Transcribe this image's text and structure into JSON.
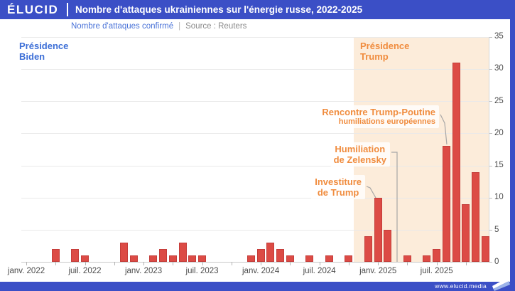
{
  "header": {
    "logo": "ÉLUCID",
    "title": "Nombre d'attaques ukrainiennes sur l'énergie russe, 2022-2025"
  },
  "subtitle": {
    "metric": "Nombre d'attaques confirmé",
    "separator": "|",
    "source": "Source : Reuters"
  },
  "presidency": {
    "biden": {
      "line1": "Présidence",
      "line2": "Biden"
    },
    "trump": {
      "line1": "Présidence",
      "line2": "Trump"
    }
  },
  "annotations": {
    "rencontre": {
      "title": "Rencontre Trump-Poutine",
      "subtitle": "humiliations européennes"
    },
    "humiliation": {
      "line1": "Humiliation",
      "line2": "de Zelensky"
    },
    "investiture": {
      "line1": "Investiture",
      "line2": "de Trump"
    }
  },
  "footer": {
    "url": "www.elucid.media"
  },
  "colors": {
    "brand_blue": "#3b4fc6",
    "bar_red": "#dc4b45",
    "orange_accent": "#f08c3e",
    "biden_blue": "#3d6fd7",
    "shade_peach": "#fcecda"
  },
  "chart_data": {
    "type": "bar",
    "title": "Nombre d'attaques ukrainiennes sur l'énergie russe, 2022-2025",
    "ylabel": "Nombre d'attaques confirmé",
    "source": "Source : Reuters",
    "ylim": [
      0,
      35
    ],
    "y_ticks": [
      0,
      5,
      10,
      15,
      20,
      25,
      30,
      35
    ],
    "grid": true,
    "legend_position": "none",
    "start_month": "janv. 2022",
    "values_by_year": {
      "2022": [
        0,
        0,
        0,
        2,
        0,
        2,
        1,
        0,
        0,
        0,
        3,
        1
      ],
      "2023": [
        0,
        1,
        2,
        1,
        3,
        1,
        1,
        0,
        0,
        0,
        0,
        1
      ],
      "2024": [
        2,
        3,
        2,
        1,
        0,
        1,
        0,
        1,
        0,
        1,
        0,
        4
      ],
      "2025": [
        10,
        5,
        0,
        1,
        0,
        1,
        2,
        18,
        31,
        9,
        14,
        4
      ]
    },
    "values": [
      0,
      0,
      0,
      2,
      0,
      2,
      1,
      0,
      0,
      0,
      3,
      1,
      0,
      1,
      2,
      1,
      3,
      1,
      1,
      0,
      0,
      0,
      0,
      1,
      2,
      3,
      2,
      1,
      0,
      1,
      0,
      1,
      0,
      1,
      0,
      4,
      10,
      5,
      0,
      1,
      0,
      1,
      2,
      18,
      31,
      9,
      14,
      4
    ],
    "x_tick_labels": [
      "janv. 2022",
      "juil. 2022",
      "janv. 2023",
      "juil. 2023",
      "janv. 2024",
      "juil. 2024",
      "janv. 2025",
      "juil. 2025"
    ],
    "x_tick_label_month_indices": [
      0,
      6,
      12,
      18,
      24,
      30,
      36,
      42
    ],
    "minor_tick_every_months": 3,
    "shaded_region": {
      "from_month_index": 34,
      "label": "Présidence Trump",
      "color": "#fcecda"
    },
    "annotations": [
      {
        "text": "Investiture de Trump",
        "month": "janv. 2025",
        "value": 10
      },
      {
        "text": "Humiliation de Zelensky",
        "month": "mars 2025",
        "value": 0
      },
      {
        "text": "Rencontre Trump-Poutine, humiliations européennes",
        "month": "août 2025",
        "value": 18
      }
    ]
  }
}
